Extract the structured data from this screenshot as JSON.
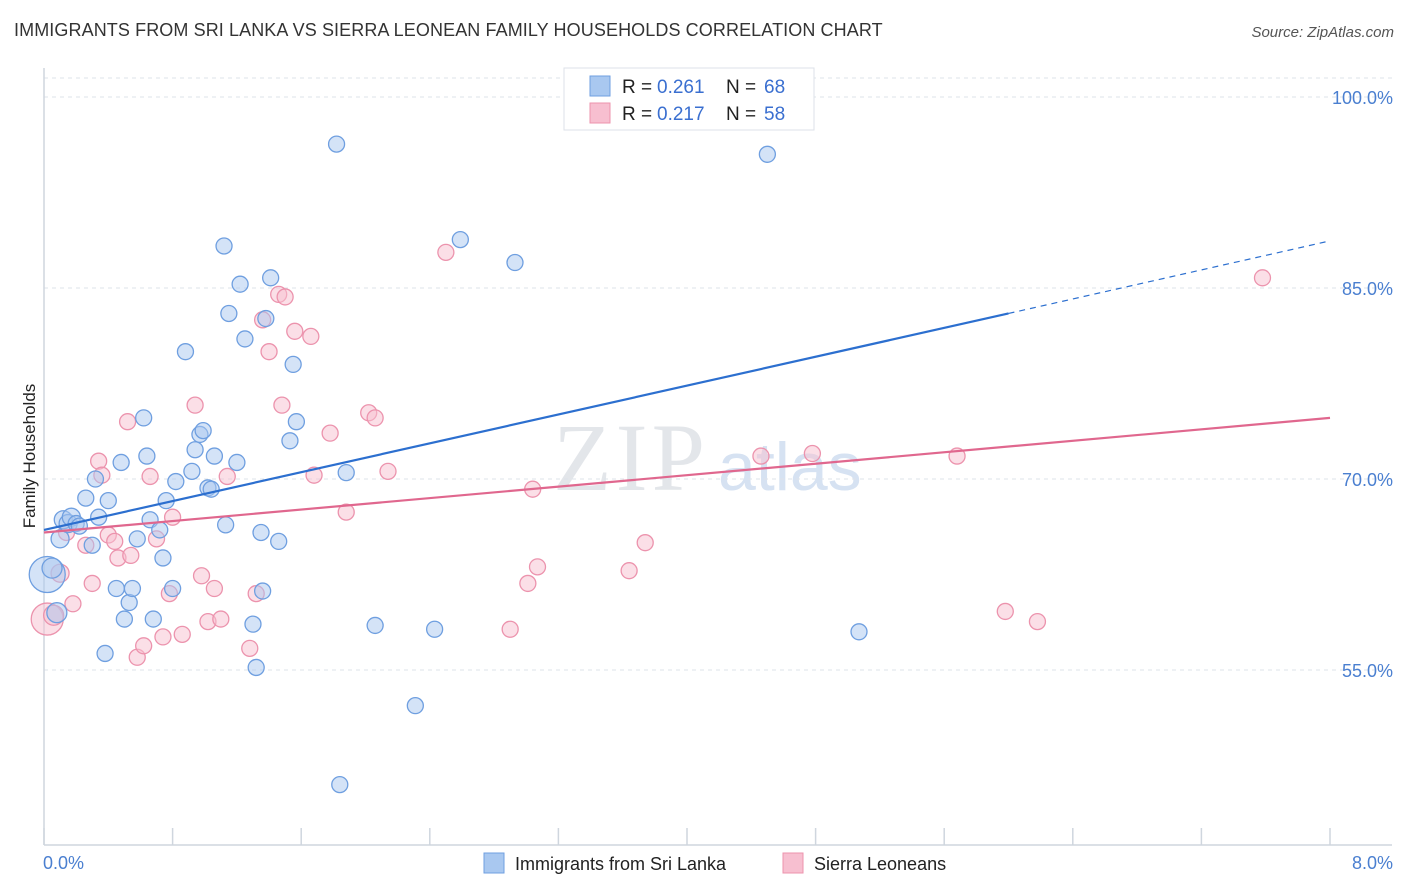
{
  "header": {
    "title": "IMMIGRANTS FROM SRI LANKA VS SIERRA LEONEAN FAMILY HOUSEHOLDS CORRELATION CHART",
    "source": "Source: ZipAtlas.com"
  },
  "watermark": {
    "zip": "ZIP",
    "atlas": "atlas"
  },
  "legend": {
    "series1": {
      "r_label": "R = ",
      "r_value": "0.261",
      "n_label": "N = ",
      "n_value": "68"
    },
    "series2": {
      "r_label": "R = ",
      "r_value": "0.217",
      "n_label": "N = ",
      "n_value": "58"
    }
  },
  "colors": {
    "blue_fill": "#a9c8f0",
    "blue_stroke": "#6f9fe0",
    "blue_line": "#2c6fcf",
    "pink_fill": "#f7bfd0",
    "pink_stroke": "#ec93ad",
    "pink_line": "#e0678e",
    "grid": "#dde3ea",
    "tick_text": "#4a7fd0"
  },
  "chart_data": {
    "type": "scatter",
    "title": "IMMIGRANTS FROM SRI LANKA VS SIERRA LEONEAN FAMILY HOUSEHOLDS CORRELATION CHART",
    "xlabel": "",
    "ylabel": "Family Households",
    "xlim": [
      0,
      8
    ],
    "ylim": [
      40,
      102
    ],
    "x_tick_labels": [
      "0.0%",
      "8.0%"
    ],
    "y_ticks": [
      55,
      70,
      85,
      100
    ],
    "y_tick_labels": [
      "55.0%",
      "70.0%",
      "85.0%",
      "100.0%"
    ],
    "grid": true,
    "bottom_legend": [
      "Immigrants from Sri Lanka",
      "Sierra Leoneans"
    ],
    "series": [
      {
        "name": "Immigrants from Sri Lanka",
        "color": "#a9c8f0",
        "trend": {
          "x0": 0,
          "y0": 66.0,
          "x1": 6.0,
          "y1": 83.0,
          "dashed_to_x": 8.0,
          "dashed_to_y": 88.7
        },
        "points": [
          [
            0.02,
            62.5,
            18
          ],
          [
            0.05,
            63.0,
            10
          ],
          [
            0.08,
            59.5,
            10
          ],
          [
            0.1,
            65.3,
            9
          ],
          [
            0.12,
            66.8,
            9
          ],
          [
            0.15,
            66.5,
            9
          ],
          [
            0.17,
            67.0,
            9
          ],
          [
            0.2,
            66.5,
            8
          ],
          [
            0.22,
            66.3,
            8
          ],
          [
            0.26,
            68.5,
            8
          ],
          [
            0.3,
            64.8,
            8
          ],
          [
            0.32,
            70.0,
            8
          ],
          [
            0.34,
            67.0,
            8
          ],
          [
            0.38,
            56.3,
            8
          ],
          [
            0.4,
            68.3,
            8
          ],
          [
            0.45,
            61.4,
            8
          ],
          [
            0.48,
            71.3,
            8
          ],
          [
            0.5,
            59.0,
            8
          ],
          [
            0.53,
            60.3,
            8
          ],
          [
            0.55,
            61.4,
            8
          ],
          [
            0.58,
            65.3,
            8
          ],
          [
            0.62,
            74.8,
            8
          ],
          [
            0.64,
            71.8,
            8
          ],
          [
            0.66,
            66.8,
            8
          ],
          [
            0.68,
            59.0,
            8
          ],
          [
            0.72,
            66.0,
            8
          ],
          [
            0.74,
            63.8,
            8
          ],
          [
            0.76,
            68.3,
            8
          ],
          [
            0.8,
            61.4,
            8
          ],
          [
            0.82,
            69.8,
            8
          ],
          [
            0.88,
            80.0,
            8
          ],
          [
            0.92,
            70.6,
            8
          ],
          [
            0.94,
            72.3,
            8
          ],
          [
            0.97,
            73.5,
            8
          ],
          [
            0.99,
            73.8,
            8
          ],
          [
            1.02,
            69.3,
            8
          ],
          [
            1.04,
            69.2,
            8
          ],
          [
            1.06,
            71.8,
            8
          ],
          [
            1.12,
            88.3,
            8
          ],
          [
            1.13,
            66.4,
            8
          ],
          [
            1.15,
            83.0,
            8
          ],
          [
            1.2,
            71.3,
            8
          ],
          [
            1.22,
            85.3,
            8
          ],
          [
            1.25,
            81.0,
            8
          ],
          [
            1.3,
            58.6,
            8
          ],
          [
            1.32,
            55.2,
            8
          ],
          [
            1.35,
            65.8,
            8
          ],
          [
            1.36,
            61.2,
            8
          ],
          [
            1.38,
            82.6,
            8
          ],
          [
            1.41,
            85.8,
            8
          ],
          [
            1.46,
            65.1,
            8
          ],
          [
            1.53,
            73.0,
            8
          ],
          [
            1.55,
            79.0,
            8
          ],
          [
            1.57,
            74.5,
            8
          ],
          [
            1.82,
            96.3,
            8
          ],
          [
            1.84,
            46.0,
            8
          ],
          [
            1.88,
            70.5,
            8
          ],
          [
            2.06,
            58.5,
            8
          ],
          [
            2.31,
            52.2,
            8
          ],
          [
            2.43,
            58.2,
            8
          ],
          [
            2.59,
            88.8,
            8
          ],
          [
            2.93,
            87.0,
            8
          ],
          [
            4.5,
            95.5,
            8
          ],
          [
            5.07,
            58.0,
            8
          ]
        ]
      },
      {
        "name": "Sierra Leoneans",
        "color": "#f7bfd0",
        "trend": {
          "x0": 0,
          "y0": 65.8,
          "x1": 8.0,
          "y1": 74.8
        },
        "points": [
          [
            0.02,
            59.0,
            16
          ],
          [
            0.06,
            59.3,
            10
          ],
          [
            0.1,
            62.6,
            9
          ],
          [
            0.14,
            65.8,
            8
          ],
          [
            0.18,
            60.2,
            8
          ],
          [
            0.26,
            64.8,
            8
          ],
          [
            0.3,
            61.8,
            8
          ],
          [
            0.34,
            71.4,
            8
          ],
          [
            0.36,
            70.3,
            8
          ],
          [
            0.4,
            65.6,
            8
          ],
          [
            0.44,
            65.1,
            8
          ],
          [
            0.46,
            63.8,
            8
          ],
          [
            0.52,
            74.5,
            8
          ],
          [
            0.54,
            64.0,
            8
          ],
          [
            0.58,
            56.0,
            8
          ],
          [
            0.62,
            56.9,
            8
          ],
          [
            0.66,
            70.2,
            8
          ],
          [
            0.7,
            65.3,
            8
          ],
          [
            0.74,
            57.6,
            8
          ],
          [
            0.78,
            61.0,
            8
          ],
          [
            0.8,
            67.0,
            8
          ],
          [
            0.86,
            57.8,
            8
          ],
          [
            0.94,
            75.8,
            8
          ],
          [
            0.98,
            62.4,
            8
          ],
          [
            1.02,
            58.8,
            8
          ],
          [
            1.06,
            61.4,
            8
          ],
          [
            1.1,
            59.0,
            8
          ],
          [
            1.14,
            70.2,
            8
          ],
          [
            1.28,
            56.7,
            8
          ],
          [
            1.32,
            61.0,
            8
          ],
          [
            1.36,
            82.5,
            8
          ],
          [
            1.4,
            80.0,
            8
          ],
          [
            1.46,
            84.5,
            8
          ],
          [
            1.48,
            75.8,
            8
          ],
          [
            1.5,
            84.3,
            8
          ],
          [
            1.56,
            81.6,
            8
          ],
          [
            1.66,
            81.2,
            8
          ],
          [
            1.68,
            70.3,
            8
          ],
          [
            1.78,
            73.6,
            8
          ],
          [
            1.88,
            67.4,
            8
          ],
          [
            2.02,
            75.2,
            8
          ],
          [
            2.06,
            74.8,
            8
          ],
          [
            2.14,
            70.6,
            8
          ],
          [
            2.5,
            87.8,
            8
          ],
          [
            2.9,
            58.2,
            8
          ],
          [
            3.01,
            61.8,
            8
          ],
          [
            3.04,
            69.2,
            8
          ],
          [
            3.07,
            63.1,
            8
          ],
          [
            3.64,
            62.8,
            8
          ],
          [
            3.74,
            65.0,
            8
          ],
          [
            4.46,
            71.8,
            8
          ],
          [
            4.78,
            72.0,
            8
          ],
          [
            5.68,
            71.8,
            8
          ],
          [
            5.98,
            59.6,
            8
          ],
          [
            6.18,
            58.8,
            8
          ],
          [
            7.58,
            85.8,
            8
          ]
        ]
      }
    ]
  }
}
